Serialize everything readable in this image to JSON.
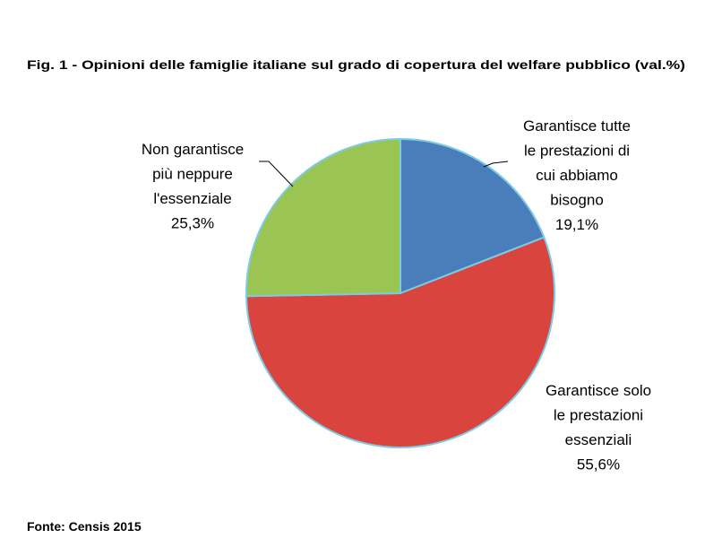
{
  "chart_data": {
    "type": "pie",
    "title": "Fig. 1 - Opinioni delle famiglie italiane sul grado di copertura del welfare pubblico (val.%)",
    "categories": [
      "Garantisce tutte\nle prestazioni di\ncui abbiamo\nbisogno",
      "Garantisce solo\nle prestazioni\nessenziali",
      "Non garantisce\npiù neppure\nl'essenziale"
    ],
    "values": [
      19.1,
      55.6,
      25.3
    ],
    "value_labels": [
      "19,1%",
      "55,6%",
      "25,3%"
    ],
    "colors": [
      "#4a7ebb",
      "#d9443f",
      "#9bc552"
    ],
    "source": "Fonte: Censis 2015"
  }
}
